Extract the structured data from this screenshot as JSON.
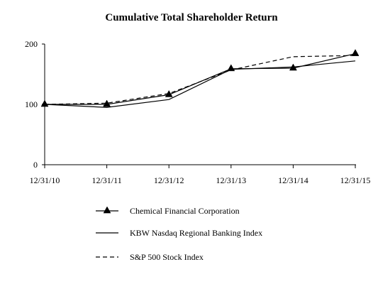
{
  "chart_data": {
    "type": "line",
    "title": "Cumulative Total Shareholder Return",
    "xlabel": "",
    "ylabel": "",
    "categories": [
      "12/31/10",
      "12/31/11",
      "12/31/12",
      "12/31/13",
      "12/31/14",
      "12/31/15"
    ],
    "ylim": [
      0,
      200
    ],
    "yticks": [
      0,
      100,
      200
    ],
    "grid": false,
    "legend_position": "bottom",
    "series": [
      {
        "name": "Chemical Financial Corporation",
        "style": "solid-triangle",
        "color": "#000000",
        "values": [
          100,
          100,
          116,
          159,
          160,
          184
        ]
      },
      {
        "name": "KBW Nasdaq Regional Banking Index",
        "style": "solid",
        "color": "#000000",
        "values": [
          100,
          95,
          108,
          158,
          162,
          172
        ]
      },
      {
        "name": "S&P 500 Stock Index",
        "style": "dashed",
        "color": "#000000",
        "values": [
          100,
          102,
          118,
          157,
          179,
          181
        ]
      }
    ]
  }
}
